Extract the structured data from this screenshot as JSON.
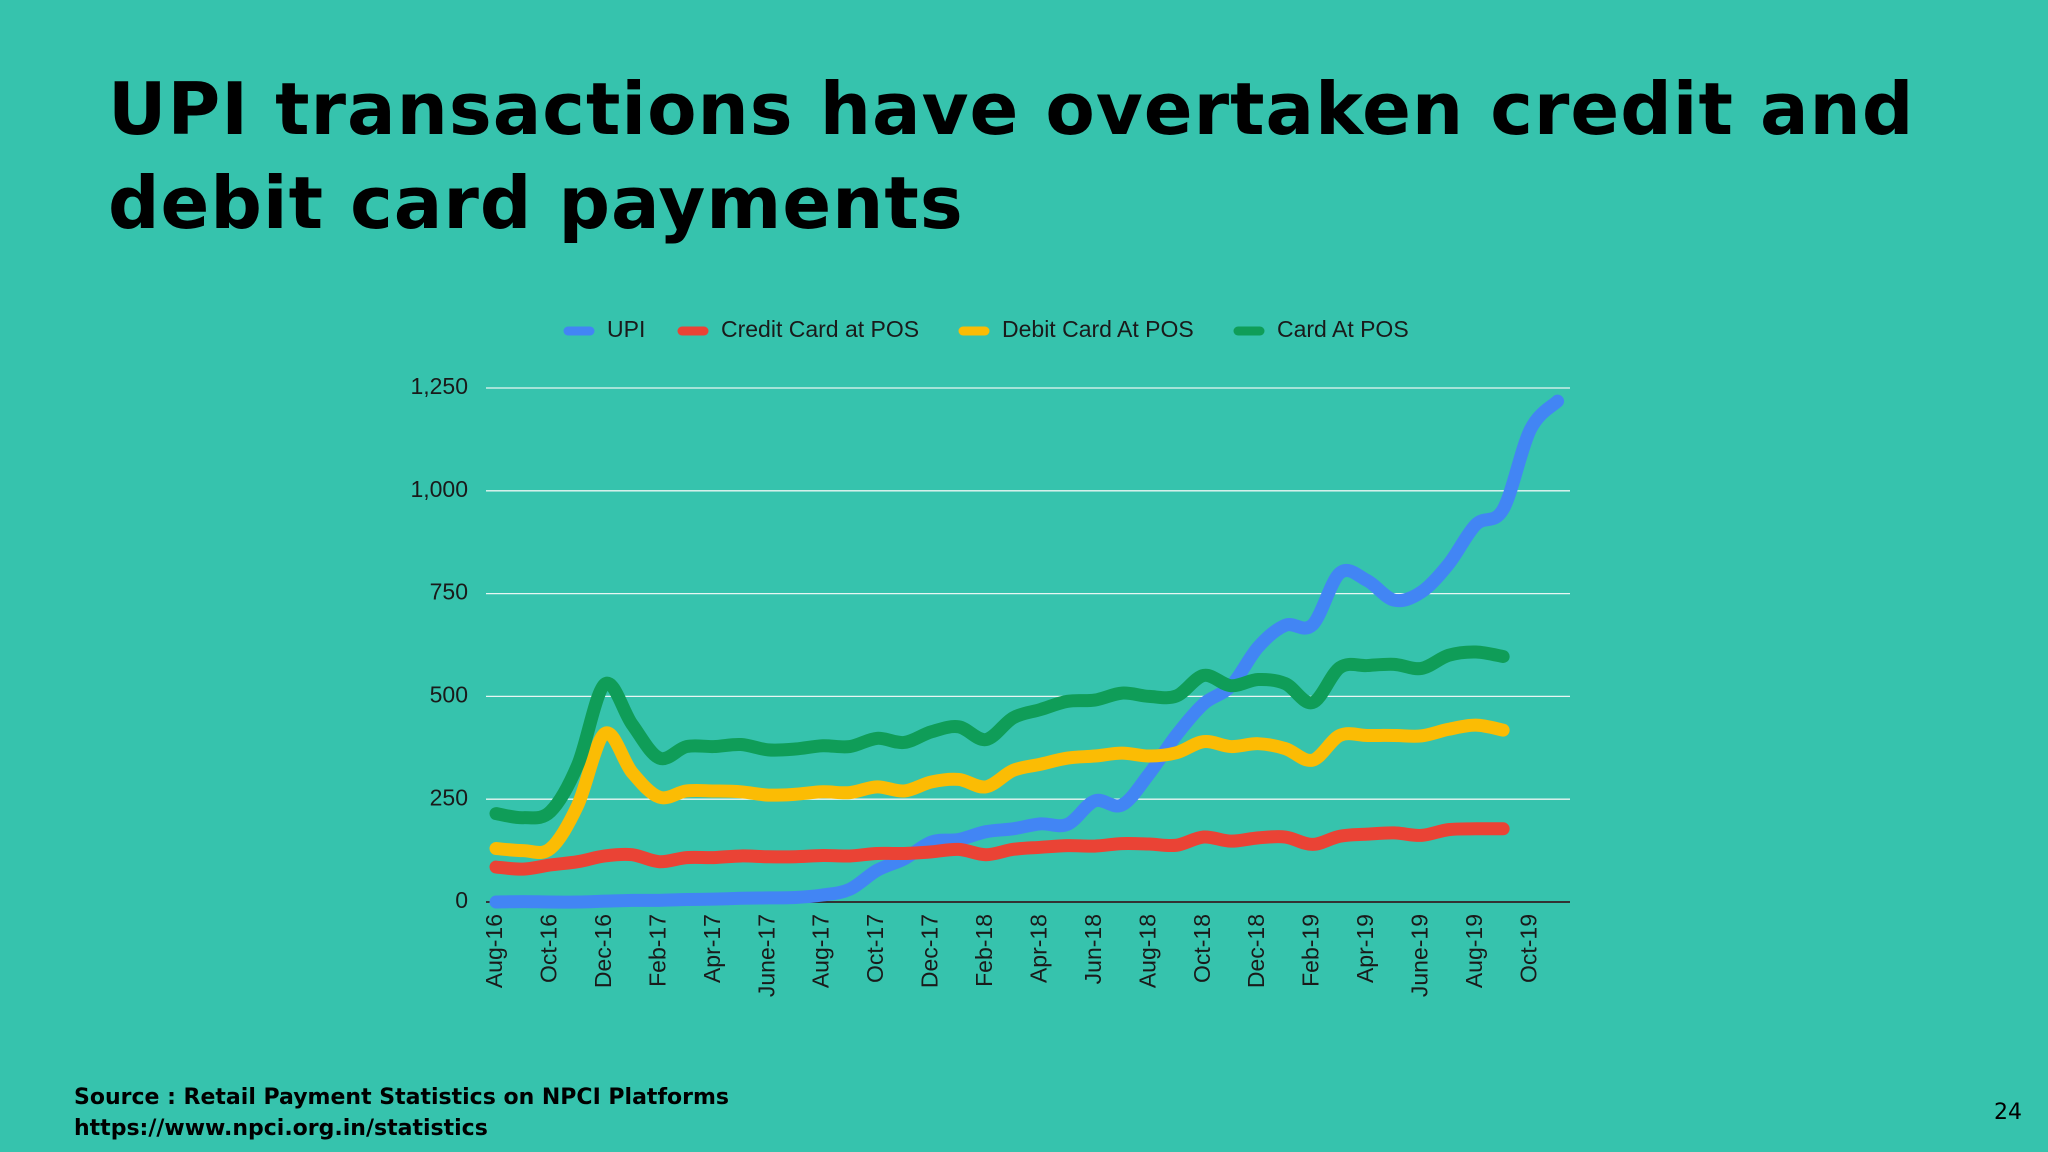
{
  "chart_data": {
    "type": "line",
    "title": "UPI transactions have overtaken credit and debit card payments",
    "categories": [
      "Aug-16",
      null,
      "Oct-16",
      null,
      "Dec-16",
      null,
      "Feb-17",
      null,
      "Apr-17",
      null,
      "June-17",
      null,
      "Aug-17",
      null,
      "Oct-17",
      null,
      "Dec-17",
      null,
      "Feb-18",
      null,
      "Apr-18",
      null,
      "Jun-18",
      null,
      "Aug-18",
      null,
      "Oct-18",
      null,
      "Dec-18",
      null,
      "Feb-19",
      null,
      "Apr-19",
      null,
      "June-19",
      null,
      "Aug-19",
      null,
      "Oct-19",
      null
    ],
    "series": [
      {
        "name": "UPI",
        "color": "#4285f4",
        "values": [
          0,
          1,
          0,
          0,
          2,
          4,
          4,
          6,
          7,
          9,
          10,
          11,
          17,
          31,
          77,
          105,
          146,
          152,
          171,
          178,
          190,
          189,
          246,
          236,
          312,
          406,
          482,
          525,
          620,
          673,
          674,
          800,
          782,
          734,
          754,
          822,
          918,
          955,
          1149,
          1218
        ]
      },
      {
        "name": "Credit Card at POS",
        "color": "#ea4335",
        "values": [
          85,
          80,
          90,
          98,
          112,
          115,
          98,
          108,
          108,
          112,
          110,
          110,
          113,
          112,
          118,
          118,
          122,
          128,
          115,
          128,
          133,
          137,
          136,
          142,
          141,
          138,
          158,
          148,
          156,
          158,
          140,
          160,
          165,
          168,
          162,
          176,
          178,
          178,
          null,
          null
        ]
      },
      {
        "name": "Debit Card At POS",
        "color": "#fbbc04",
        "values": [
          130,
          125,
          130,
          235,
          410,
          315,
          255,
          270,
          270,
          268,
          260,
          262,
          268,
          266,
          280,
          270,
          292,
          298,
          280,
          320,
          335,
          350,
          355,
          362,
          355,
          363,
          390,
          378,
          385,
          373,
          345,
          405,
          405,
          405,
          404,
          420,
          430,
          418,
          null,
          null
        ]
      },
      {
        "name": "Card At POS",
        "color": "#0f9d58",
        "values": [
          215,
          205,
          220,
          333,
          530,
          432,
          350,
          378,
          378,
          383,
          370,
          372,
          380,
          378,
          398,
          388,
          414,
          426,
          395,
          448,
          468,
          488,
          491,
          508,
          500,
          501,
          551,
          526,
          541,
          531,
          485,
          570,
          575,
          578,
          568,
          600,
          608,
          597,
          null,
          null
        ]
      }
    ],
    "ylim": [
      0,
      1250
    ],
    "yticks": [
      0,
      250,
      500,
      750,
      {
        "value": 1000,
        "label": "1,000"
      },
      {
        "value": 1250,
        "label": "1,250"
      }
    ],
    "grid": true,
    "legend": "top"
  },
  "source": [
    "Source : Retail Payment Statistics on NPCI Platforms",
    "https://www.npci.org.in/statistics"
  ],
  "page_number": "24"
}
